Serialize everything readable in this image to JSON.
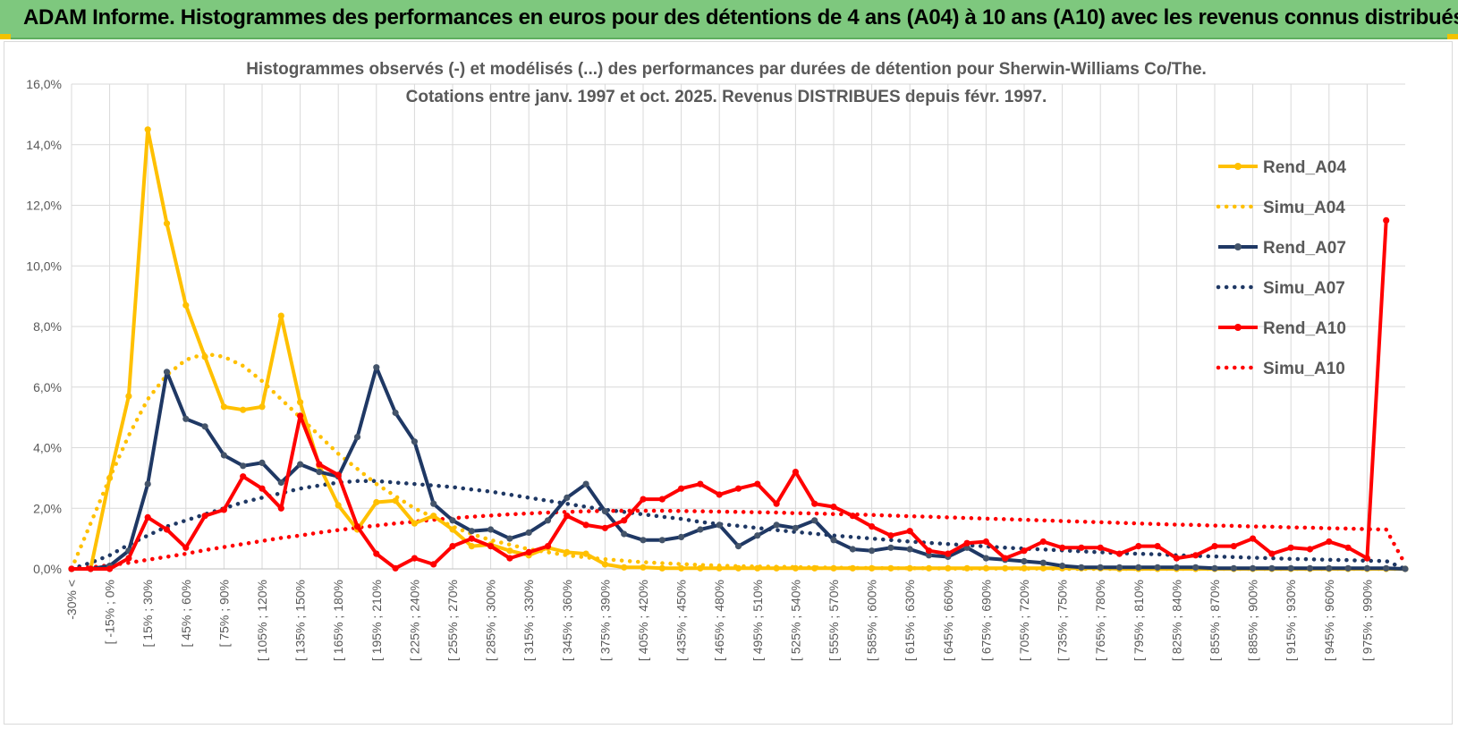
{
  "header": {
    "title": "ADAM Informe. Histogrammes des performances en euros pour des détentions de 4 ans (A04) à 10 ans (A10) avec les revenus connus distribués"
  },
  "colors": {
    "banner": "#7ec87e",
    "A04": "#ffc000",
    "A07": "#1f3864",
    "A10": "#ff0000",
    "grid": "#d9d9d9",
    "axis_text": "#595959"
  },
  "chart_data": {
    "type": "line",
    "title": "Histogrammes observés (-) et modélisés (...) des performances par durées de détention pour Sherwin-Williams Co/The.",
    "subtitle": "Cotations entre janv. 1997 et oct. 2025.  Revenus DISTRIBUES depuis févr. 1997.",
    "xlabel": "",
    "ylabel": "",
    "ylim": [
      0,
      16
    ],
    "yticks": [
      0,
      2,
      4,
      6,
      8,
      10,
      12,
      14,
      16
    ],
    "ytick_labels": [
      "0,0%",
      "2,0%",
      "4,0%",
      "6,0%",
      "8,0%",
      "10,0%",
      "12,0%",
      "14,0%",
      "16,0%"
    ],
    "grid": true,
    "legend_position": "right",
    "x_tick_labels": [
      "-30% <",
      "[ -15% ; 0%",
      "[ 15% ; 30%",
      "[ 45% ; 60%",
      "[ 75% ; 90%",
      "[ 105% ; 120%",
      "[ 135% ; 150%",
      "[ 165% ; 180%",
      "[ 195% ; 210%",
      "[ 225% ; 240%",
      "[ 255% ; 270%",
      "[ 285% ; 300%",
      "[ 315% ; 330%",
      "[ 345% ; 360%",
      "[ 375% ; 390%",
      "[ 405% ; 420%",
      "[ 435% ; 450%",
      "[ 465% ; 480%",
      "[ 495% ; 510%",
      "[ 525% ; 540%",
      "[ 555% ; 570%",
      "[ 585% ; 600%",
      "[ 615% ; 630%",
      "[ 645% ; 660%",
      "[ 675% ; 690%",
      "[ 705% ; 720%",
      "[ 735% ; 750%",
      "[ 765% ; 780%",
      "[ 795% ; 810%",
      "[ 825% ; 840%",
      "[ 855% ; 870%",
      "[ 885% ; 900%",
      "[ 915% ; 930%",
      "[ 945% ; 960%",
      "[ 975% ; 990%"
    ],
    "n_categories": 71,
    "series": [
      {
        "name": "Rend_A04",
        "style": "solid",
        "color": "#ffc000",
        "values": [
          0,
          0,
          3.0,
          5.7,
          14.5,
          11.4,
          8.7,
          7.0,
          5.35,
          5.25,
          5.35,
          8.35,
          5.5,
          3.4,
          2.1,
          1.3,
          2.2,
          2.25,
          1.5,
          1.75,
          1.3,
          0.75,
          0.8,
          0.6,
          0.45,
          0.7,
          0.55,
          0.5,
          0.15,
          0.05,
          0.05,
          0.02,
          0.02,
          0.02,
          0.02,
          0.02,
          0.02,
          0.02,
          0.02,
          0.02,
          0.02,
          0.02,
          0.02,
          0.02,
          0.02,
          0.02,
          0.02,
          0.02,
          0.02,
          0.02,
          0.02,
          0.02,
          0.02,
          0.02,
          0.02,
          0,
          0,
          0,
          0,
          0,
          0,
          0,
          0,
          0,
          0,
          0,
          0,
          0,
          0,
          0,
          0
        ]
      },
      {
        "name": "Simu_A04",
        "style": "dotted",
        "color": "#ffc000",
        "values": [
          0,
          1.5,
          3.0,
          4.4,
          5.6,
          6.4,
          6.9,
          7.1,
          7.0,
          6.7,
          6.2,
          5.6,
          5.0,
          4.4,
          3.8,
          3.3,
          2.8,
          2.4,
          2.0,
          1.7,
          1.4,
          1.15,
          0.95,
          0.8,
          0.65,
          0.55,
          0.45,
          0.38,
          0.32,
          0.27,
          0.22,
          0.19,
          0.16,
          0.13,
          0.11,
          0.09,
          0.08,
          0.07,
          0.06,
          0.05,
          0.04,
          0.03,
          0.03,
          0.02,
          0.02,
          0.02,
          0.01,
          0.01,
          0.01,
          0.01,
          0.01,
          0.01,
          0,
          0,
          0,
          0,
          0,
          0,
          0,
          0,
          0,
          0,
          0,
          0,
          0,
          0,
          0,
          0,
          0,
          0,
          0
        ]
      },
      {
        "name": "Rend_A07",
        "style": "solid",
        "color": "#1f3864",
        "values": [
          0,
          0,
          0.1,
          0.6,
          2.8,
          6.5,
          4.95,
          4.7,
          3.75,
          3.4,
          3.5,
          2.85,
          3.45,
          3.2,
          3.05,
          4.35,
          6.65,
          5.15,
          4.2,
          2.15,
          1.6,
          1.25,
          1.3,
          1.0,
          1.2,
          1.6,
          2.35,
          2.8,
          1.9,
          1.15,
          0.95,
          0.95,
          1.05,
          1.3,
          1.45,
          0.75,
          1.1,
          1.45,
          1.35,
          1.6,
          0.95,
          0.65,
          0.6,
          0.7,
          0.65,
          0.45,
          0.4,
          0.7,
          0.35,
          0.3,
          0.25,
          0.2,
          0.1,
          0.05,
          0.05,
          0.05,
          0.05,
          0.05,
          0.05,
          0.05,
          0.02,
          0.02,
          0.02,
          0.02,
          0.02,
          0.02,
          0.02,
          0.02,
          0.02,
          0.02,
          0
        ]
      },
      {
        "name": "Simu_A07",
        "style": "dotted",
        "color": "#1f3864",
        "values": [
          0,
          0.2,
          0.45,
          0.8,
          1.1,
          1.4,
          1.6,
          1.8,
          2.0,
          2.2,
          2.35,
          2.5,
          2.65,
          2.75,
          2.85,
          2.9,
          2.9,
          2.85,
          2.8,
          2.75,
          2.7,
          2.62,
          2.55,
          2.45,
          2.35,
          2.25,
          2.15,
          2.05,
          1.95,
          1.88,
          1.8,
          1.72,
          1.65,
          1.55,
          1.48,
          1.42,
          1.35,
          1.28,
          1.22,
          1.16,
          1.1,
          1.05,
          1.0,
          0.95,
          0.9,
          0.86,
          0.82,
          0.78,
          0.74,
          0.7,
          0.67,
          0.64,
          0.61,
          0.58,
          0.55,
          0.52,
          0.5,
          0.48,
          0.45,
          0.43,
          0.41,
          0.39,
          0.37,
          0.35,
          0.33,
          0.32,
          0.3,
          0.29,
          0.27,
          0.26,
          0
        ]
      },
      {
        "name": "Rend_A10",
        "style": "solid",
        "color": "#ff0000",
        "values": [
          0,
          0,
          0,
          0.35,
          1.7,
          1.3,
          0.7,
          1.75,
          1.95,
          3.05,
          2.65,
          2.0,
          5.05,
          3.45,
          3.1,
          1.4,
          0.5,
          0.02,
          0.35,
          0.15,
          0.75,
          1.0,
          0.75,
          0.35,
          0.55,
          0.75,
          1.75,
          1.45,
          1.35,
          1.6,
          2.3,
          2.3,
          2.65,
          2.8,
          2.45,
          2.65,
          2.8,
          2.15,
          3.2,
          2.15,
          2.05,
          1.75,
          1.4,
          1.1,
          1.25,
          0.6,
          0.5,
          0.85,
          0.9,
          0.35,
          0.6,
          0.9,
          0.7,
          0.7,
          0.7,
          0.5,
          0.75,
          0.75,
          0.35,
          0.45,
          0.75,
          0.75,
          1.0,
          0.5,
          0.7,
          0.65,
          0.9,
          0.7,
          0.35,
          11.5,
          null
        ]
      },
      {
        "name": "Simu_A10",
        "style": "dotted",
        "color": "#ff0000",
        "values": [
          0,
          0.05,
          0.12,
          0.2,
          0.3,
          0.4,
          0.5,
          0.62,
          0.72,
          0.82,
          0.92,
          1.02,
          1.1,
          1.2,
          1.28,
          1.36,
          1.43,
          1.5,
          1.56,
          1.62,
          1.67,
          1.72,
          1.76,
          1.8,
          1.83,
          1.86,
          1.88,
          1.9,
          1.91,
          1.92,
          1.92,
          1.92,
          1.91,
          1.9,
          1.89,
          1.88,
          1.87,
          1.86,
          1.84,
          1.83,
          1.81,
          1.8,
          1.78,
          1.76,
          1.74,
          1.72,
          1.7,
          1.68,
          1.66,
          1.64,
          1.62,
          1.6,
          1.58,
          1.56,
          1.54,
          1.52,
          1.5,
          1.48,
          1.46,
          1.45,
          1.43,
          1.42,
          1.4,
          1.39,
          1.37,
          1.36,
          1.34,
          1.33,
          1.31,
          1.3,
          0.15
        ]
      }
    ]
  }
}
